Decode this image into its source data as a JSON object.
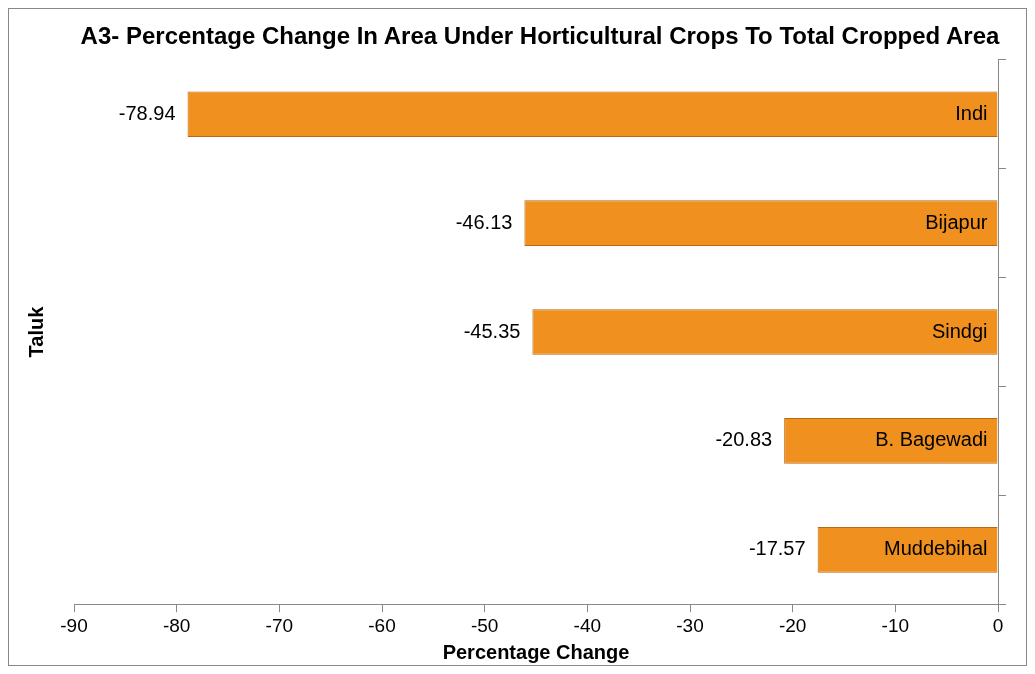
{
  "chart_data": {
    "type": "bar",
    "orientation": "horizontal",
    "title": "A3- Percentage Change In Area Under Horticultural Crops To Total Cropped Area",
    "xlabel": "Percentage Change",
    "ylabel": "Taluk",
    "categories": [
      "Indi",
      "Bijapur",
      "Sindgi",
      "B. Bagewadi",
      "Muddebihal"
    ],
    "values": [
      -78.94,
      -46.13,
      -45.35,
      -20.83,
      -17.57
    ],
    "color": "#f0901e",
    "xlim": [
      -90,
      0
    ],
    "xticks": [
      -90,
      -80,
      -70,
      -60,
      -50,
      -40,
      -30,
      -20,
      -10,
      0
    ],
    "data_labels": true,
    "grid": false,
    "legend": false
  }
}
